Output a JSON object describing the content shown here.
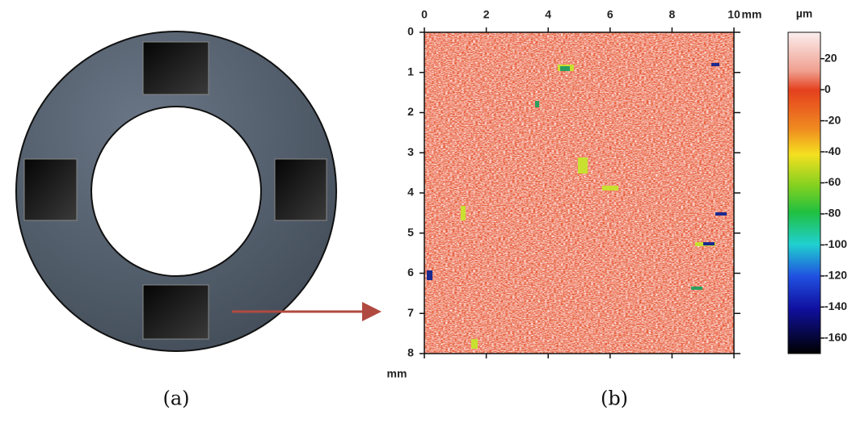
{
  "panel_a": {
    "label": "(a)"
  },
  "panel_b": {
    "label": "(b)",
    "x_axis": {
      "unit": "mm",
      "range": [
        0,
        10
      ],
      "ticks": [
        0,
        2,
        4,
        6,
        8,
        10
      ]
    },
    "y_axis": {
      "unit": "mm",
      "range": [
        0,
        8
      ],
      "ticks": [
        0,
        1,
        2,
        3,
        4,
        5,
        6,
        7,
        8
      ]
    },
    "colorbar": {
      "unit": "µm",
      "range": [
        -170,
        37
      ],
      "ticks": [
        20,
        0,
        -20,
        -40,
        -60,
        -80,
        -100,
        -120,
        -140,
        -160
      ]
    }
  }
}
